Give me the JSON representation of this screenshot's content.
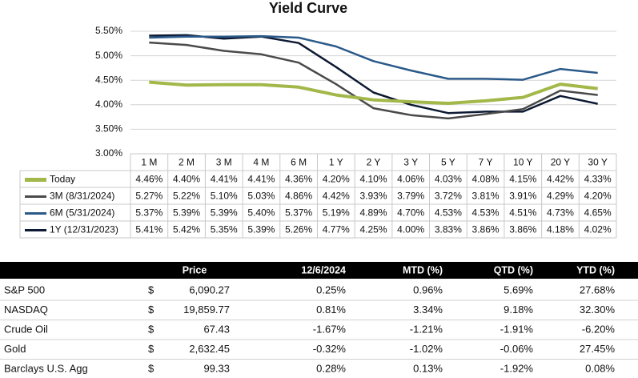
{
  "chart_data": {
    "type": "line",
    "title": "Yield Curve",
    "categories": [
      "1 M",
      "2 M",
      "3 M",
      "4 M",
      "6 M",
      "1 Y",
      "2 Y",
      "3 Y",
      "5 Y",
      "7 Y",
      "10 Y",
      "20 Y",
      "30 Y"
    ],
    "ylim": [
      3,
      5.5
    ],
    "yticks": [
      {
        "value": 3,
        "label": "3.00%"
      },
      {
        "value": 3.5,
        "label": "3.50%"
      },
      {
        "value": 4,
        "label": "4.00%"
      },
      {
        "value": 4.5,
        "label": "4.50%"
      },
      {
        "value": 5,
        "label": "5.00%"
      },
      {
        "value": 5.5,
        "label": "5.50%"
      }
    ],
    "grid": true,
    "series": [
      {
        "name": "Today",
        "color": "#a3b84a",
        "values": [
          4.46,
          4.4,
          4.41,
          4.41,
          4.36,
          4.2,
          4.1,
          4.06,
          4.03,
          4.08,
          4.15,
          4.42,
          4.33
        ],
        "value_labels": [
          "4.46%",
          "4.40%",
          "4.41%",
          "4.41%",
          "4.36%",
          "4.20%",
          "4.10%",
          "4.06%",
          "4.03%",
          "4.08%",
          "4.15%",
          "4.42%",
          "4.33%"
        ]
      },
      {
        "name": "3M (8/31/2024)",
        "color": "#4a4a4a",
        "values": [
          5.27,
          5.22,
          5.1,
          5.03,
          4.86,
          4.42,
          3.93,
          3.79,
          3.72,
          3.81,
          3.91,
          4.29,
          4.2
        ],
        "value_labels": [
          "5.27%",
          "5.22%",
          "5.10%",
          "5.03%",
          "4.86%",
          "4.42%",
          "3.93%",
          "3.79%",
          "3.72%",
          "3.81%",
          "3.91%",
          "4.29%",
          "4.20%"
        ]
      },
      {
        "name": "6M (5/31/2024)",
        "color": "#2b5a8a",
        "values": [
          5.37,
          5.39,
          5.39,
          5.4,
          5.37,
          5.19,
          4.89,
          4.7,
          4.53,
          4.53,
          4.51,
          4.73,
          4.65
        ],
        "value_labels": [
          "5.37%",
          "5.39%",
          "5.39%",
          "5.40%",
          "5.37%",
          "5.19%",
          "4.89%",
          "4.70%",
          "4.53%",
          "4.53%",
          "4.51%",
          "4.73%",
          "4.65%"
        ]
      },
      {
        "name": "1Y (12/31/2023)",
        "color": "#0d1a33",
        "values": [
          5.41,
          5.42,
          5.35,
          5.39,
          5.26,
          4.77,
          4.25,
          4.0,
          3.83,
          3.86,
          3.86,
          4.18,
          4.02
        ],
        "value_labels": [
          "5.41%",
          "5.42%",
          "5.35%",
          "5.39%",
          "5.26%",
          "4.77%",
          "4.25%",
          "4.00%",
          "3.83%",
          "3.86%",
          "3.86%",
          "4.18%",
          "4.02%"
        ]
      }
    ]
  },
  "table": {
    "columns": [
      "Price",
      "12/6/2024",
      "MTD (%)",
      "QTD (%)",
      "YTD (%)"
    ],
    "rows": [
      [
        "S&P 500",
        "$",
        "6,090.27",
        "0.25%",
        "0.96%",
        "5.69%",
        "27.68%"
      ],
      [
        "NASDAQ",
        "$",
        "19,859.77",
        "0.81%",
        "3.34%",
        "9.18%",
        "32.30%"
      ],
      [
        "Crude Oil",
        "$",
        "67.43",
        "-1.67%",
        "-1.21%",
        "-1.91%",
        "-6.20%"
      ],
      [
        "Gold",
        "$",
        "2,632.45",
        "-0.32%",
        "-1.02%",
        "-0.06%",
        "27.45%"
      ],
      [
        "Barclays U.S. Agg",
        "$",
        "99.33",
        "0.28%",
        "0.13%",
        "-1.92%",
        "0.08%"
      ]
    ]
  }
}
